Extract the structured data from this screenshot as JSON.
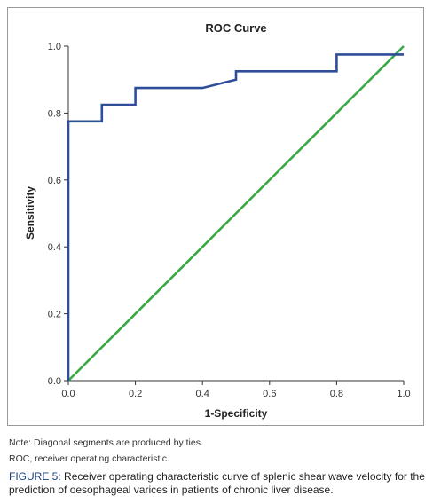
{
  "chart_data": {
    "type": "line",
    "title": "ROC Curve",
    "xlabel": "1-Specificity",
    "ylabel": "Sensitivity",
    "xlim": [
      0.0,
      1.0
    ],
    "ylim": [
      0.0,
      1.0
    ],
    "x_ticks": [
      "0.0",
      "0.2",
      "0.4",
      "0.6",
      "0.8",
      "1.0"
    ],
    "y_ticks": [
      "0.0",
      "0.2",
      "0.4",
      "0.6",
      "0.8",
      "1.0"
    ],
    "grid": false,
    "series": [
      {
        "color": "#2f4e9a",
        "x": [
          0.0,
          0.0,
          0.0,
          0.1,
          0.1,
          0.2,
          0.2,
          0.4,
          0.5,
          0.5,
          0.8,
          0.8,
          1.0
        ],
        "y": [
          0.0,
          0.775,
          0.775,
          0.775,
          0.825,
          0.825,
          0.875,
          0.875,
          0.9,
          0.925,
          0.925,
          0.975,
          0.975
        ]
      },
      {
        "color": "#3aa845",
        "x": [
          0.0,
          1.0
        ],
        "y": [
          0.0,
          1.0
        ]
      }
    ]
  },
  "notes": {
    "line1": "Note: Diagonal segments are produced by ties.",
    "line2": "ROC, receiver operating characteristic."
  },
  "caption": {
    "label": "FIGURE 5:",
    "text": " Receiver operating characteristic curve of splenic shear wave velocity for the prediction of oesophageal varices in patients of chronic liver disease."
  }
}
